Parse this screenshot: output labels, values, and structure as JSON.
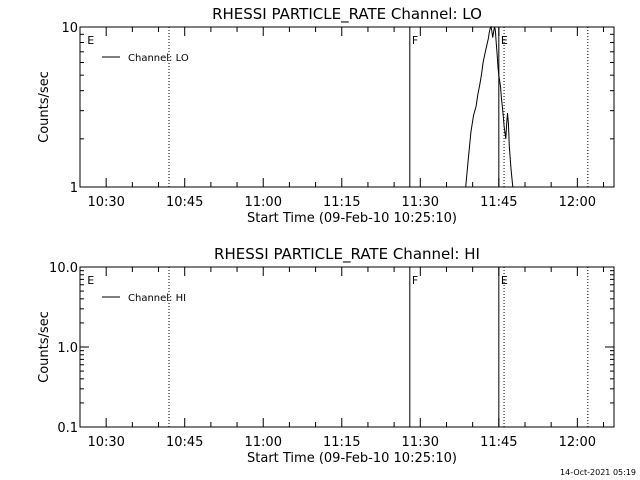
{
  "chart_data": [
    {
      "type": "line",
      "title": "RHESSI PARTICLE_RATE Channel: LO",
      "xlabel": "Start Time (09-Feb-10 10:25:10)",
      "ylabel": "Counts/sec",
      "yscale": "log",
      "ylim": [
        1,
        10
      ],
      "y_ticks": [
        {
          "value": 1,
          "label": "1"
        },
        {
          "value": 10,
          "label": "10"
        }
      ],
      "xlim": [
        "10:25",
        "12:07"
      ],
      "x_ticks": [
        "10:30",
        "10:45",
        "11:00",
        "11:15",
        "11:30",
        "11:45",
        "12:00"
      ],
      "legend": {
        "position": "top-left",
        "entries": [
          "Channel: LO"
        ]
      },
      "series": [
        {
          "name": "Channel: LO",
          "x": [
            "11:38:40",
            "11:39:10",
            "11:39:40",
            "11:40:10",
            "11:40:40",
            "11:41:00",
            "11:41:20",
            "11:41:40",
            "11:42:00",
            "11:42:20",
            "11:42:40",
            "11:43:00",
            "11:43:10",
            "11:43:20",
            "11:43:30",
            "11:43:40",
            "11:43:50",
            "11:44:00",
            "11:44:10",
            "11:44:20",
            "11:44:30",
            "11:44:40",
            "11:44:50",
            "11:45:00",
            "11:45:10",
            "11:45:20",
            "11:45:30",
            "11:45:40",
            "11:45:50",
            "11:46:00",
            "11:46:10",
            "11:46:20",
            "11:46:30",
            "11:46:40",
            "11:46:50",
            "11:47:00",
            "11:47:20",
            "11:47:40"
          ],
          "values": [
            1.0,
            1.5,
            2.2,
            2.8,
            3.2,
            3.8,
            4.3,
            5.0,
            6.0,
            6.8,
            7.6,
            8.5,
            9.2,
            9.8,
            10.0,
            9.5,
            8.6,
            9.3,
            10.0,
            9.6,
            8.0,
            6.8,
            5.6,
            5.0,
            4.6,
            4.2,
            3.6,
            3.2,
            2.8,
            2.4,
            2.2,
            2.0,
            2.5,
            2.9,
            2.5,
            1.8,
            1.3,
            1.0
          ]
        }
      ],
      "markers": [
        {
          "x": "10:26",
          "label": "E",
          "style": "none"
        },
        {
          "x": "10:42",
          "label": "",
          "style": "dotted"
        },
        {
          "x": "11:28",
          "label": "F",
          "style": "solid"
        },
        {
          "x": "11:45",
          "label": "E",
          "style": "solid"
        },
        {
          "x": "11:46",
          "label": "",
          "style": "dotted"
        },
        {
          "x": "12:02",
          "label": "",
          "style": "dotted"
        }
      ]
    },
    {
      "type": "line",
      "title": "RHESSI PARTICLE_RATE Channel: HI",
      "xlabel": "Start Time (09-Feb-10 10:25:10)",
      "ylabel": "Counts/sec",
      "yscale": "log",
      "ylim": [
        0.1,
        10
      ],
      "y_ticks": [
        {
          "value": 0.1,
          "label": "0.1"
        },
        {
          "value": 1,
          "label": "1.0"
        },
        {
          "value": 10,
          "label": "10.0"
        }
      ],
      "xlim": [
        "10:25",
        "12:07"
      ],
      "x_ticks": [
        "10:30",
        "10:45",
        "11:00",
        "11:15",
        "11:30",
        "11:45",
        "12:00"
      ],
      "legend": {
        "position": "top-left",
        "entries": [
          "Channel: HI"
        ]
      },
      "series": [
        {
          "name": "Channel: HI",
          "x": [],
          "values": []
        }
      ],
      "markers": [
        {
          "x": "10:26",
          "label": "E",
          "style": "none"
        },
        {
          "x": "10:42",
          "label": "",
          "style": "dotted"
        },
        {
          "x": "11:28",
          "label": "F",
          "style": "solid"
        },
        {
          "x": "11:45",
          "label": "E",
          "style": "solid"
        },
        {
          "x": "11:46",
          "label": "",
          "style": "dotted"
        },
        {
          "x": "12:02",
          "label": "",
          "style": "dotted"
        }
      ]
    }
  ],
  "timestamp": "14-Oct-2021 05:19",
  "colors": {
    "background": "#ffffff",
    "foreground": "#000000"
  }
}
